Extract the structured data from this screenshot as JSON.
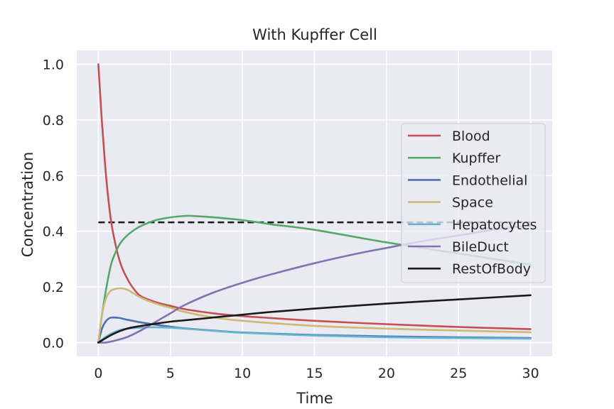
{
  "chart_data": {
    "type": "line",
    "title": "With Kupffer Cell",
    "xlabel": "Time",
    "ylabel": "Concentration",
    "xlim": [
      -1.5,
      31.5
    ],
    "ylim": [
      -0.05,
      1.05
    ],
    "xticks": [
      0,
      5,
      10,
      15,
      20,
      25,
      30
    ],
    "xtick_labels": [
      "0",
      "5",
      "10",
      "15",
      "20",
      "25",
      "30"
    ],
    "yticks": [
      0.0,
      0.2,
      0.4,
      0.6,
      0.8,
      1.0
    ],
    "ytick_labels": [
      "0.0",
      "0.2",
      "0.4",
      "0.6",
      "0.8",
      "1.0"
    ],
    "grid": true,
    "style": "seaborn-darkgrid",
    "legend_position": "center-right",
    "series": [
      {
        "name": "Blood",
        "color": "#c44e52",
        "x": [
          0,
          0.25,
          0.5,
          0.75,
          1,
          1.5,
          2,
          2.5,
          3,
          4,
          5,
          6,
          8,
          10,
          12,
          15,
          20,
          25,
          30
        ],
        "y": [
          1.0,
          0.79,
          0.62,
          0.49,
          0.4,
          0.29,
          0.23,
          0.19,
          0.165,
          0.145,
          0.132,
          0.12,
          0.105,
          0.095,
          0.088,
          0.078,
          0.066,
          0.056,
          0.048
        ]
      },
      {
        "name": "Kupffer",
        "color": "#55a868",
        "x": [
          0,
          0.25,
          0.5,
          0.75,
          1,
          1.5,
          2,
          2.5,
          3,
          4,
          5,
          6,
          6.5,
          8,
          10,
          12,
          15,
          20,
          25,
          30
        ],
        "y": [
          0.0,
          0.1,
          0.18,
          0.25,
          0.3,
          0.355,
          0.385,
          0.405,
          0.42,
          0.44,
          0.45,
          0.455,
          0.455,
          0.45,
          0.44,
          0.425,
          0.405,
          0.36,
          0.32,
          0.28
        ]
      },
      {
        "name": "Endothelial",
        "color": "#4c72b0",
        "x": [
          0,
          0.25,
          0.5,
          0.75,
          1,
          1.5,
          2,
          3,
          4,
          5,
          6,
          8,
          10,
          15,
          20,
          25,
          30
        ],
        "y": [
          0.0,
          0.05,
          0.075,
          0.087,
          0.09,
          0.088,
          0.082,
          0.072,
          0.064,
          0.057,
          0.051,
          0.043,
          0.036,
          0.027,
          0.022,
          0.019,
          0.016
        ]
      },
      {
        "name": "Space",
        "color": "#ccb974",
        "x": [
          0,
          0.25,
          0.5,
          0.75,
          1,
          1.5,
          2,
          2.5,
          3,
          4,
          5,
          6,
          8,
          10,
          15,
          20,
          25,
          30
        ],
        "y": [
          0.0,
          0.1,
          0.155,
          0.18,
          0.19,
          0.195,
          0.19,
          0.175,
          0.16,
          0.14,
          0.125,
          0.11,
          0.09,
          0.078,
          0.06,
          0.05,
          0.043,
          0.037
        ]
      },
      {
        "name": "Hepatocytes",
        "color": "#64b5cd",
        "x": [
          0,
          0.5,
          1,
          1.5,
          2,
          3,
          4,
          5,
          6,
          8,
          10,
          15,
          20,
          25,
          30
        ],
        "y": [
          0.0,
          0.02,
          0.035,
          0.045,
          0.05,
          0.054,
          0.055,
          0.053,
          0.05,
          0.042,
          0.035,
          0.025,
          0.019,
          0.016,
          0.014
        ]
      },
      {
        "name": "BileDuct",
        "color": "#8172b2",
        "x": [
          0,
          0.5,
          1,
          2,
          3,
          4,
          5,
          6,
          8,
          10,
          12,
          15,
          18,
          20,
          22,
          25,
          28,
          30
        ],
        "y": [
          0.0,
          0.0,
          0.005,
          0.02,
          0.045,
          0.075,
          0.105,
          0.135,
          0.18,
          0.215,
          0.245,
          0.285,
          0.32,
          0.34,
          0.36,
          0.385,
          0.41,
          0.42
        ]
      },
      {
        "name": "RestOfBody",
        "color": "#1a1a1a",
        "x": [
          0,
          1,
          2,
          3,
          4,
          5,
          6,
          8,
          10,
          12,
          15,
          20,
          25,
          30
        ],
        "y": [
          0.0,
          0.03,
          0.05,
          0.06,
          0.068,
          0.075,
          0.08,
          0.09,
          0.1,
          0.11,
          0.122,
          0.14,
          0.155,
          0.17
        ]
      }
    ],
    "reference_line": {
      "style": "dashed",
      "color": "#1a1a1a",
      "y": 0.432,
      "x_range": [
        0,
        30
      ]
    }
  }
}
